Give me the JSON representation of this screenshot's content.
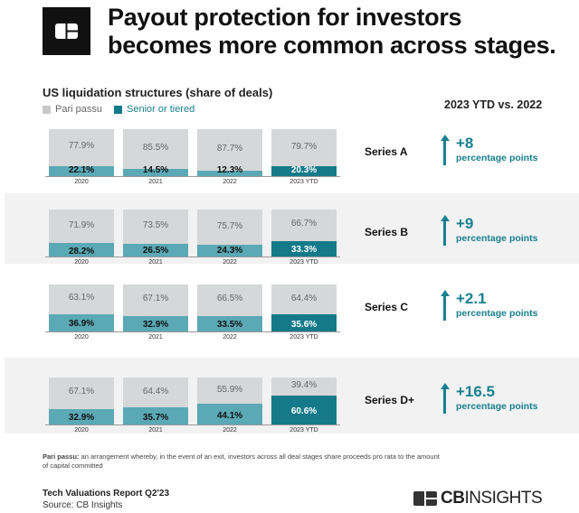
{
  "header": {
    "title_line1": "Payout protection for investors",
    "title_line2": "becomes more common across stages."
  },
  "chart_data": {
    "type": "bar",
    "stacked": true,
    "title": "US liquidation structures (share of deals)",
    "categories": [
      "2020",
      "2021",
      "2022",
      "2023 YTD"
    ],
    "legend": [
      {
        "name": "Pari passu",
        "color": "#d5d7d8"
      },
      {
        "name": "Senior or tiered",
        "color": "#147a8a"
      }
    ],
    "legend_placement": "top-left",
    "colors": {
      "pari_passu": "#d5d7d8",
      "senior_past": "#5aa9b5",
      "senior_current": "#147a8a",
      "accent_text": "#1a7f8e"
    },
    "comparison_header": "2023 YTD vs. 2022",
    "comparison_unit": "percentage points",
    "panels": [
      {
        "name": "Series A",
        "pari_passu": [
          77.9,
          85.5,
          87.7,
          79.7
        ],
        "senior": [
          22.1,
          14.5,
          12.3,
          20.3
        ],
        "change": "+8"
      },
      {
        "name": "Series B",
        "pari_passu": [
          71.9,
          73.5,
          75.7,
          66.7
        ],
        "senior": [
          28.2,
          26.5,
          24.3,
          33.3
        ],
        "change": "+9"
      },
      {
        "name": "Series C",
        "pari_passu": [
          63.1,
          67.1,
          66.5,
          64.4
        ],
        "senior": [
          36.9,
          32.9,
          33.5,
          35.6
        ],
        "change": "+2.1"
      },
      {
        "name": "Series D+",
        "pari_passu": [
          67.1,
          64.4,
          55.9,
          39.4
        ],
        "senior": [
          32.9,
          35.7,
          44.1,
          60.6
        ],
        "change": "+16.5"
      }
    ]
  },
  "note": {
    "term": "Pari passu:",
    "text": " an arrangement whereby, in the event of an exit, investors across all deal stages share proceeds pro rata to the amount of capital committed"
  },
  "footer": {
    "report": "Tech Valuations Report Q2'23",
    "source": "Source: CB Insights",
    "brand": "CBINSIGHTS",
    "brand_bold": "CB",
    "brand_rest": "INSIGHTS"
  }
}
